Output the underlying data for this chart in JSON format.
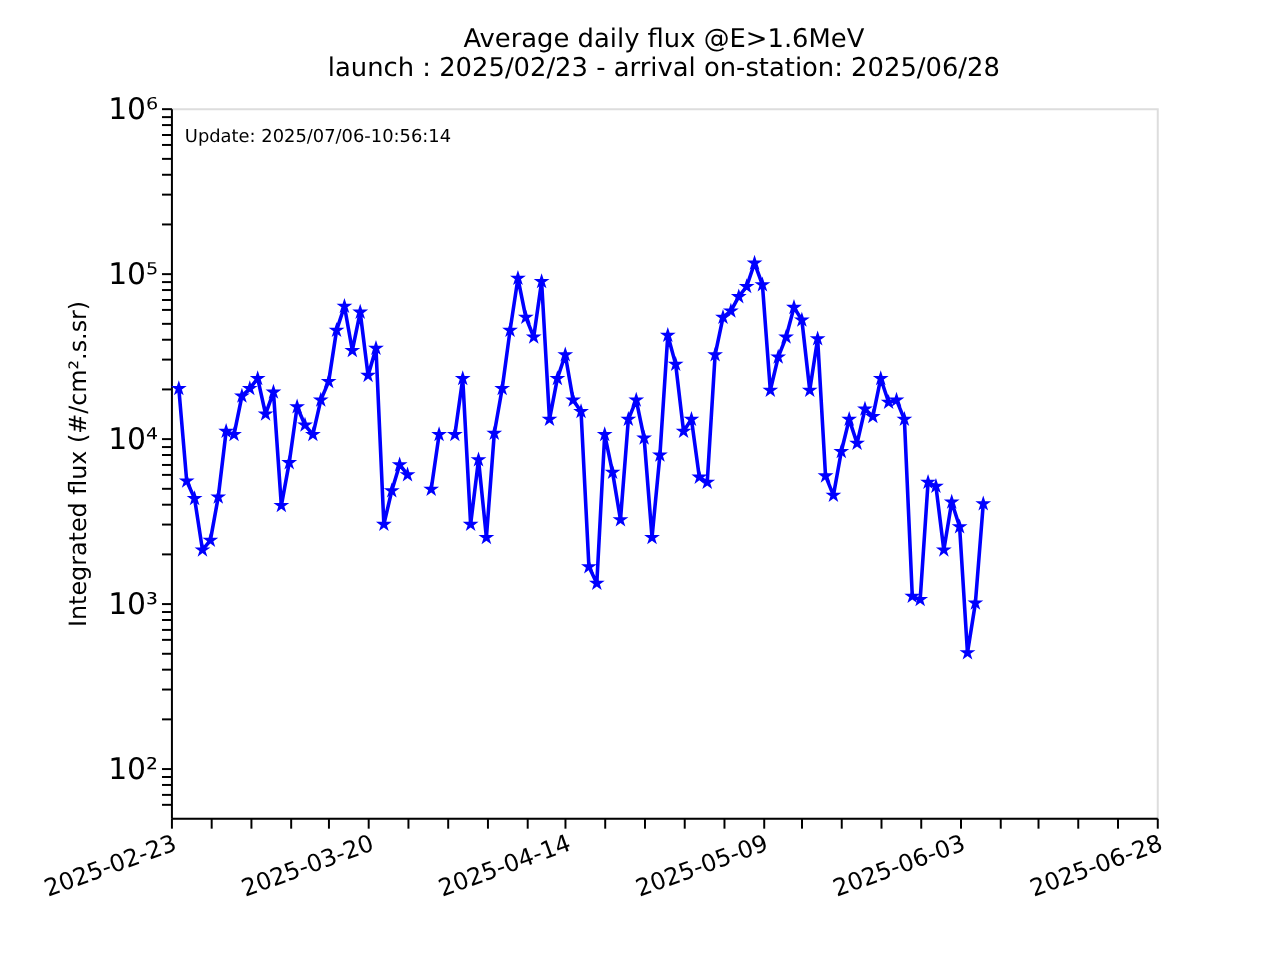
{
  "chart_data": {
    "type": "line",
    "title": [
      "Average daily flux @E>1.6MeV",
      "launch : 2025/02/23 - arrival on-station: 2025/06/28"
    ],
    "xlabel": null,
    "ylabel": "Integrated flux (#/cm².s.sr)",
    "annotations": [
      "Update: 2025/07/06-10:56:14"
    ],
    "x": [
      "2025-02-24",
      "2025-02-25",
      "2025-02-26",
      "2025-02-27",
      "2025-02-28",
      "2025-03-01",
      "2025-03-02",
      "2025-03-03",
      "2025-03-04",
      "2025-03-05",
      "2025-03-06",
      "2025-03-07",
      "2025-03-08",
      "2025-03-09",
      "2025-03-10",
      "2025-03-11",
      "2025-03-12",
      "2025-03-13",
      "2025-03-14",
      "2025-03-15",
      "2025-03-16",
      "2025-03-17",
      "2025-03-18",
      "2025-03-19",
      "2025-03-20",
      "2025-03-21",
      "2025-03-22",
      "2025-03-23",
      "2025-03-24",
      "2025-03-25",
      "2025-03-26",
      "2025-03-27",
      "2025-03-28",
      "2025-03-29",
      "2025-03-30",
      "2025-03-31",
      "2025-04-01",
      "2025-04-02",
      "2025-04-03",
      "2025-04-04",
      "2025-04-05",
      "2025-04-06",
      "2025-04-07",
      "2025-04-08",
      "2025-04-09",
      "2025-04-10",
      "2025-04-11",
      "2025-04-12",
      "2025-04-13",
      "2025-04-14",
      "2025-04-15",
      "2025-04-16",
      "2025-04-17",
      "2025-04-18",
      "2025-04-19",
      "2025-04-20",
      "2025-04-21",
      "2025-04-22",
      "2025-04-23",
      "2025-04-24",
      "2025-04-25",
      "2025-04-26",
      "2025-04-27",
      "2025-04-28",
      "2025-04-29",
      "2025-04-30",
      "2025-05-01",
      "2025-05-02",
      "2025-05-03",
      "2025-05-04",
      "2025-05-05",
      "2025-05-06",
      "2025-05-07",
      "2025-05-08",
      "2025-05-09",
      "2025-05-10",
      "2025-05-11",
      "2025-05-12",
      "2025-05-13",
      "2025-05-14",
      "2025-05-15",
      "2025-05-16",
      "2025-05-17",
      "2025-05-18",
      "2025-05-19",
      "2025-05-20",
      "2025-05-21",
      "2025-05-22",
      "2025-05-23",
      "2025-05-24",
      "2025-05-25",
      "2025-05-26",
      "2025-05-27",
      "2025-05-28",
      "2025-05-29",
      "2025-05-30",
      "2025-05-31",
      "2025-06-01",
      "2025-06-02",
      "2025-06-03",
      "2025-06-04",
      "2025-06-05",
      "2025-06-06"
    ],
    "series": [
      {
        "color": "#0000ff",
        "values": [
          20000,
          5500,
          4300,
          2100,
          2400,
          4400,
          11000,
          10500,
          18000,
          20000,
          23000,
          14000,
          19000,
          3900,
          7100,
          15500,
          12000,
          10500,
          17000,
          22000,
          45000,
          63000,
          34000,
          58000,
          24000,
          35000,
          3000,
          4800,
          6900,
          6000,
          null,
          null,
          4900,
          10500,
          null,
          10500,
          23000,
          3000,
          7400,
          2500,
          10700,
          20000,
          45000,
          93000,
          54000,
          41000,
          89000,
          13000,
          23000,
          32000,
          17000,
          14500,
          1660,
          1320,
          10500,
          6200,
          3200,
          13000,
          17000,
          10000,
          2500,
          7900,
          42000,
          28000,
          11000,
          13000,
          5800,
          5400,
          32000,
          54000,
          59000,
          72000,
          83000,
          115000,
          85000,
          19500,
          31000,
          41000,
          62000,
          52000,
          19500,
          40000,
          5900,
          4500,
          8300,
          13000,
          9300,
          15000,
          13500,
          23000,
          16500,
          17000,
          13000,
          1100,
          1050,
          5400,
          5100,
          2100,
          4100,
          2900,
          500,
          1000,
          4000
        ]
      }
    ],
    "marker": "star",
    "log": "y",
    "xlim": [
      "2025-02-23",
      "2025-06-28"
    ],
    "xticks": [
      {
        "value": "2025-02-23",
        "label": "2025-02-23"
      },
      {
        "value": "2025-02-28",
        "label": null
      },
      {
        "value": "2025-03-05",
        "label": null
      },
      {
        "value": "2025-03-10",
        "label": null
      },
      {
        "value": "2025-03-15",
        "label": null
      },
      {
        "value": "2025-03-20",
        "label": "2025-03-20"
      },
      {
        "value": "2025-03-25",
        "label": null
      },
      {
        "value": "2025-03-30",
        "label": null
      },
      {
        "value": "2025-04-04",
        "label": null
      },
      {
        "value": "2025-04-09",
        "label": null
      },
      {
        "value": "2025-04-14",
        "label": "2025-04-14"
      },
      {
        "value": "2025-04-19",
        "label": null
      },
      {
        "value": "2025-04-24",
        "label": null
      },
      {
        "value": "2025-04-29",
        "label": null
      },
      {
        "value": "2025-05-04",
        "label": null
      },
      {
        "value": "2025-05-09",
        "label": "2025-05-09"
      },
      {
        "value": "2025-05-14",
        "label": null
      },
      {
        "value": "2025-05-19",
        "label": null
      },
      {
        "value": "2025-05-24",
        "label": null
      },
      {
        "value": "2025-05-29",
        "label": null
      },
      {
        "value": "2025-06-03",
        "label": "2025-06-03"
      },
      {
        "value": "2025-06-08",
        "label": null
      },
      {
        "value": "2025-06-13",
        "label": null
      },
      {
        "value": "2025-06-18",
        "label": null
      },
      {
        "value": "2025-06-23",
        "label": null
      },
      {
        "value": "2025-06-28",
        "label": "2025-06-28"
      }
    ],
    "ylim": [
      50,
      1000000
    ],
    "yticks": [
      {
        "value": 60,
        "label": null
      },
      {
        "value": 70,
        "label": null
      },
      {
        "value": 80,
        "label": null
      },
      {
        "value": 90,
        "label": null
      },
      {
        "value": 100,
        "label": "10²"
      },
      {
        "value": 200,
        "label": null
      },
      {
        "value": 300,
        "label": null
      },
      {
        "value": 400,
        "label": null
      },
      {
        "value": 500,
        "label": null
      },
      {
        "value": 600,
        "label": null
      },
      {
        "value": 700,
        "label": null
      },
      {
        "value": 800,
        "label": null
      },
      {
        "value": 900,
        "label": null
      },
      {
        "value": 1000,
        "label": "10³"
      },
      {
        "value": 2000,
        "label": null
      },
      {
        "value": 3000,
        "label": null
      },
      {
        "value": 4000,
        "label": null
      },
      {
        "value": 5000,
        "label": null
      },
      {
        "value": 6000,
        "label": null
      },
      {
        "value": 7000,
        "label": null
      },
      {
        "value": 8000,
        "label": null
      },
      {
        "value": 9000,
        "label": null
      },
      {
        "value": 10000,
        "label": "10⁴"
      },
      {
        "value": 20000,
        "label": null
      },
      {
        "value": 30000,
        "label": null
      },
      {
        "value": 40000,
        "label": null
      },
      {
        "value": 50000,
        "label": null
      },
      {
        "value": 60000,
        "label": null
      },
      {
        "value": 70000,
        "label": null
      },
      {
        "value": 80000,
        "label": null
      },
      {
        "value": 90000,
        "label": null
      },
      {
        "value": 100000,
        "label": "10⁵"
      },
      {
        "value": 200000,
        "label": null
      },
      {
        "value": 300000,
        "label": null
      },
      {
        "value": 400000,
        "label": null
      },
      {
        "value": 500000,
        "label": null
      },
      {
        "value": 600000,
        "label": null
      },
      {
        "value": 700000,
        "label": null
      },
      {
        "value": 800000,
        "label": null
      },
      {
        "value": 900000,
        "label": null
      },
      {
        "value": 1000000,
        "label": "10⁶"
      }
    ],
    "grid": false
  }
}
